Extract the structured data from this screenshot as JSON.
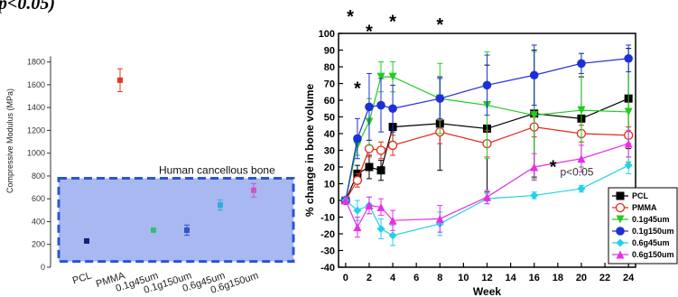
{
  "page": {
    "clipped_heading": "p<0.05)"
  },
  "chart_data": [
    {
      "type": "scatter",
      "ylabel": "Compressive Modulus (MPa)",
      "ylim": [
        0,
        1900
      ],
      "yticks": [
        0,
        200,
        400,
        600,
        800,
        1000,
        1200,
        1400,
        1600,
        1800
      ],
      "categories": [
        "PCL",
        "PMMA",
        "0.1g45um",
        "0.1g150um",
        "0.6g45um",
        "0.6g150um"
      ],
      "values": [
        230,
        1640,
        325,
        325,
        545,
        675
      ],
      "errors": [
        10,
        100,
        15,
        45,
        45,
        60
      ],
      "colors": [
        "#1a1a7a",
        "#e33a1f",
        "#2fbf7a",
        "#3355cc",
        "#33aadd",
        "#cc55cc"
      ],
      "region": {
        "label": "Human cancellous bone",
        "y_range": [
          50,
          780
        ],
        "fill": "#a8b8f0",
        "border": "#2a55d6"
      }
    },
    {
      "type": "line",
      "xlabel": "Week",
      "ylabel": "% change in bone volume",
      "xlim": [
        -0.6,
        24.6
      ],
      "ylim": [
        -40,
        100
      ],
      "xticks": [
        0,
        2,
        4,
        6,
        8,
        10,
        12,
        14,
        16,
        18,
        20,
        22,
        24
      ],
      "yticks": [
        -40,
        -30,
        -20,
        -10,
        0,
        10,
        20,
        30,
        40,
        50,
        60,
        70,
        80,
        90,
        100
      ],
      "x": [
        0,
        1,
        2,
        3,
        4,
        8,
        12,
        16,
        20,
        24
      ],
      "legend_position": "bottom-right",
      "series": [
        {
          "name": "PCL",
          "color": "#000000",
          "marker": "square-filled",
          "values": [
            0,
            16,
            20,
            18,
            44,
            46,
            43,
            52,
            49,
            61
          ],
          "errors": [
            2,
            5,
            7,
            6,
            12,
            28,
            38,
            38,
            25,
            30
          ]
        },
        {
          "name": "PMMA",
          "color": "#e32a1a",
          "marker": "circle-open",
          "values": [
            0,
            12,
            31,
            30,
            33,
            41,
            34,
            44,
            40,
            39
          ],
          "errors": [
            2,
            4,
            5,
            5,
            6,
            7,
            8,
            6,
            5,
            5
          ]
        },
        {
          "name": "0.1g45um",
          "color": "#22cc22",
          "marker": "triangle-down-filled",
          "values": [
            0,
            33,
            47,
            74,
            74,
            61,
            57,
            51,
            54,
            53
          ],
          "errors": [
            2,
            6,
            14,
            9,
            9,
            21,
            32,
            38,
            34,
            30
          ]
        },
        {
          "name": "0.1g150um",
          "color": "#1f2fd6",
          "marker": "circle-filled",
          "values": [
            0,
            37,
            56,
            57,
            55,
            61,
            69,
            75,
            82,
            85
          ],
          "errors": [
            2,
            12,
            20,
            16,
            14,
            12,
            18,
            18,
            6,
            8
          ]
        },
        {
          "name": "0.6g45um",
          "color": "#22d2e8",
          "marker": "diamond-filled",
          "values": [
            0,
            -6,
            -3,
            -17,
            -21,
            -14,
            1,
            3,
            7,
            21
          ],
          "errors": [
            2,
            6,
            5,
            6,
            6,
            7,
            3,
            2,
            2,
            5
          ]
        },
        {
          "name": "0.6g150um",
          "color": "#e630e6",
          "marker": "triangle-up-filled",
          "values": [
            0,
            -16,
            -3,
            -4,
            -12,
            -11,
            2,
            20,
            25,
            34
          ],
          "errors": [
            2,
            6,
            5,
            5,
            6,
            8,
            4,
            8,
            8,
            8
          ]
        }
      ],
      "annotations": [
        {
          "text": "*",
          "x": 0.4,
          "y": 113
        },
        {
          "text": "*",
          "x": 2.0,
          "y": 104
        },
        {
          "text": "*",
          "x": 4.0,
          "y": 110
        },
        {
          "text": "*",
          "x": 8.0,
          "y": 108
        },
        {
          "text": "*",
          "x": 1.0,
          "y": 70
        },
        {
          "text": "*",
          "x": 17.6,
          "y": 23
        },
        {
          "text": "p<0.05",
          "x": 18.2,
          "y": 17
        }
      ]
    }
  ]
}
